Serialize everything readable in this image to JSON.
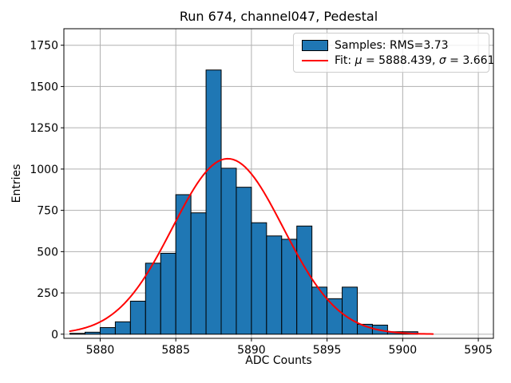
{
  "chart_data": {
    "type": "histogram",
    "title": "Run 674, channel047, Pedestal",
    "xlabel": "ADC Counts",
    "ylabel": "Entries",
    "xlim": [
      5877.6,
      5906.0
    ],
    "ylim": [
      -25,
      1850
    ],
    "xticks": [
      5880,
      5885,
      5890,
      5895,
      5900,
      5905
    ],
    "yticks": [
      0,
      250,
      500,
      750,
      1000,
      1250,
      1500,
      1750
    ],
    "grid": true,
    "legend_position": "upper right",
    "bins": {
      "start": 5878,
      "width": 1,
      "counts": [
        5,
        12,
        40,
        75,
        200,
        430,
        490,
        845,
        735,
        1600,
        1005,
        890,
        675,
        595,
        575,
        655,
        285,
        215,
        285,
        60,
        55,
        15,
        15
      ]
    },
    "fit": {
      "type": "gaussian",
      "mu": 5888.439,
      "sigma": 3.661,
      "peak_amplitude": 1063,
      "x_range": [
        5878,
        5902
      ]
    },
    "legend": {
      "samples_label": "Samples: RMS=3.73",
      "fit_label_parts": {
        "prefix": "Fit: ",
        "mu_symbol": "μ",
        "mu_value": " = 5888.439, ",
        "sigma_symbol": "σ",
        "sigma_value": " = 3.661"
      }
    },
    "colors": {
      "bar_fill": "#1f77b4",
      "bar_edge": "#000000",
      "fit_line": "#ff0000",
      "grid": "#b0b0b0",
      "spine": "#000000",
      "tick_label": "#000000",
      "legend_border": "#cccccc",
      "background": "#ffffff"
    }
  }
}
